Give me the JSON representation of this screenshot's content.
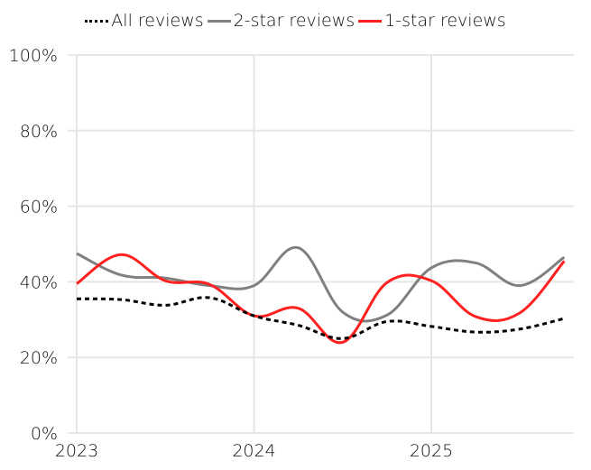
{
  "chart_data": {
    "type": "line",
    "title": "",
    "xlabel": "",
    "ylabel": "",
    "ylim": [
      0,
      100
    ],
    "xlim": [
      2023,
      2025.8
    ],
    "grid": true,
    "legend_position": "top",
    "y_ticks": [
      "0%",
      "20%",
      "40%",
      "60%",
      "80%",
      "100%"
    ],
    "x_ticks": [
      "2023",
      "2024",
      "2025"
    ],
    "x": [
      2023.0,
      2023.25,
      2023.5,
      2023.75,
      2024.0,
      2024.25,
      2024.5,
      2024.75,
      2025.0,
      2025.25,
      2025.5,
      2025.75
    ],
    "series": [
      {
        "name": "All reviews",
        "color": "#000000",
        "style": "dotted",
        "values": [
          35.5,
          35.3,
          33.8,
          35.8,
          31.0,
          28.5,
          25.0,
          29.5,
          28.2,
          26.7,
          27.5,
          30.3
        ]
      },
      {
        "name": "2-star reviews",
        "color": "#808080",
        "style": "solid",
        "values": [
          47.5,
          41.8,
          41.0,
          39.0,
          39.0,
          49.0,
          32.0,
          31.2,
          43.7,
          45.0,
          39.0,
          46.5
        ]
      },
      {
        "name": "1-star reviews",
        "color": "#ff2020",
        "style": "solid",
        "values": [
          39.5,
          47.2,
          40.3,
          39.3,
          31.0,
          33.0,
          24.0,
          39.8,
          40.3,
          30.8,
          31.8,
          45.5
        ]
      }
    ]
  },
  "legend": {
    "items": [
      {
        "label": "All reviews"
      },
      {
        "label": "2-star reviews"
      },
      {
        "label": "1-star reviews"
      }
    ]
  }
}
